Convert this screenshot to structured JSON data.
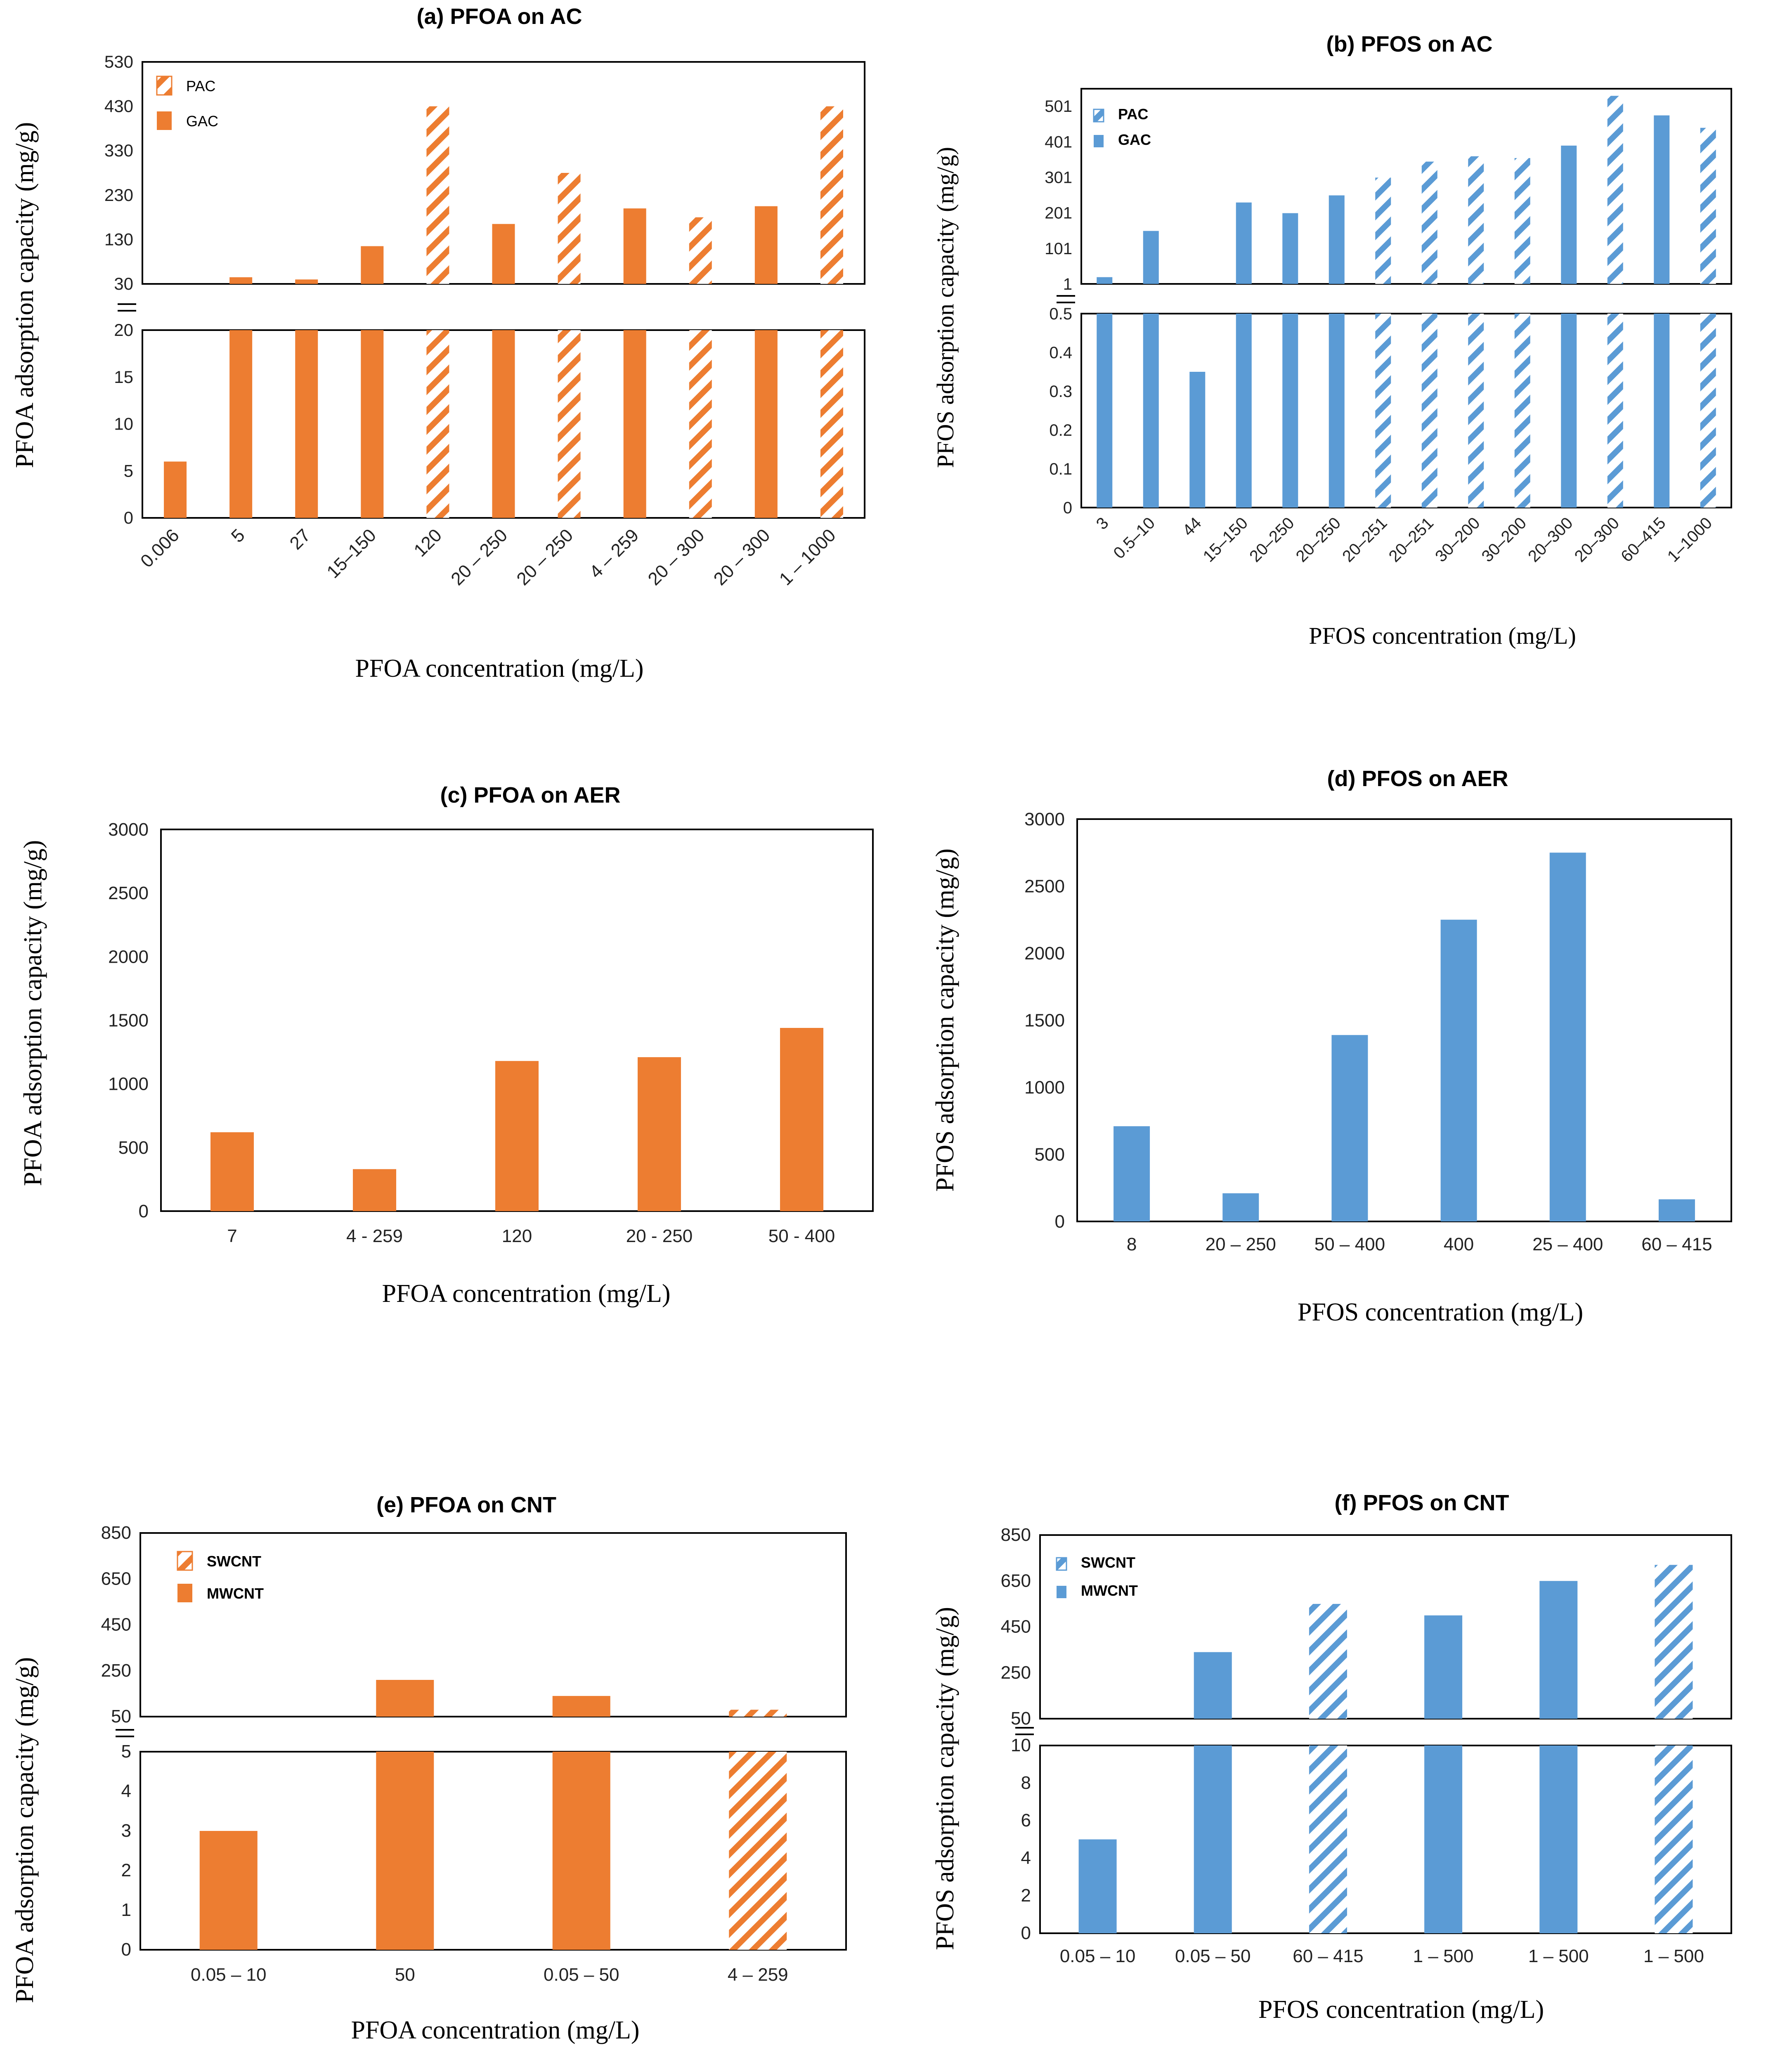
{
  "colors": {
    "orange": "#ED7D31",
    "blue": "#5B9BD5"
  },
  "chart_data": [
    {
      "id": "a",
      "type": "bar",
      "broken_axis": true,
      "title": "(a) PFOA on AC",
      "xlabel": "PFOA concentration (mg/L)",
      "ylabel": "PFOA adsorption capacity (mg/g)",
      "color": "#ED7D31",
      "legend": [
        "PAC",
        "GAC"
      ],
      "categories": [
        "0.006",
        "5",
        "27",
        "15–150",
        "120",
        "20 – 250",
        "20 – 250",
        "4 – 259",
        "20 – 300",
        "20 – 300",
        "1 – 1000"
      ],
      "values": [
        6,
        45,
        40,
        115,
        430,
        165,
        280,
        200,
        180,
        205,
        430
      ],
      "hatched": [
        false,
        false,
        false,
        false,
        true,
        false,
        true,
        false,
        true,
        false,
        true
      ],
      "upper": {
        "ylim": [
          30,
          530
        ],
        "ticks": [
          "530",
          "430",
          "330",
          "230",
          "130",
          "30"
        ],
        "tick_values": [
          530,
          430,
          330,
          230,
          130,
          30
        ]
      },
      "lower": {
        "ylim": [
          0,
          20
        ],
        "ticks": [
          "20",
          "15",
          "10",
          "5",
          "0"
        ],
        "tick_values": [
          20,
          15,
          10,
          5,
          0
        ]
      }
    },
    {
      "id": "b",
      "type": "bar",
      "broken_axis": true,
      "title": "(b) PFOS on AC",
      "xlabel": "PFOS concentration (mg/L)",
      "ylabel": "PFOS adsorption capacity (mg/g)",
      "color": "#5B9BD5",
      "legend": [
        "PAC",
        "GAC"
      ],
      "categories": [
        "3",
        "0.5–10",
        "44",
        "15–150",
        "20–250",
        "20–250",
        "20–251",
        "20–251",
        "30–200",
        "30–200",
        "20–300",
        "20–300",
        "60–415",
        "1–1000"
      ],
      "values": [
        20,
        150,
        0.35,
        230,
        200,
        250,
        300,
        345,
        360,
        355,
        390,
        530,
        475,
        440
      ],
      "hatched": [
        false,
        false,
        false,
        false,
        false,
        false,
        true,
        true,
        true,
        true,
        false,
        true,
        false,
        true
      ],
      "upper": {
        "ylim": [
          1,
          550
        ],
        "ticks": [
          "501",
          "401",
          "301",
          "201",
          "101",
          "1"
        ],
        "tick_values": [
          501,
          401,
          301,
          201,
          101,
          1
        ]
      },
      "lower": {
        "ylim": [
          0,
          0.5
        ],
        "ticks": [
          "0.5",
          "0.4",
          "0.3",
          "0.2",
          "0.1",
          "0"
        ],
        "tick_values": [
          0.5,
          0.4,
          0.3,
          0.2,
          0.1,
          0
        ]
      }
    },
    {
      "id": "c",
      "type": "bar",
      "broken_axis": false,
      "title": "(c) PFOA on AER",
      "xlabel": "PFOA concentration (mg/L)",
      "ylabel": "PFOA adsorption capacity (mg/g)",
      "color": "#ED7D31",
      "categories": [
        "7",
        "4 - 259",
        "120",
        "20 - 250",
        "50 - 400"
      ],
      "values": [
        620,
        330,
        1180,
        1210,
        1440
      ],
      "ylim": [
        0,
        3000
      ],
      "ticks": [
        "3000",
        "2500",
        "2000",
        "1500",
        "1000",
        "500",
        "0"
      ],
      "tick_values": [
        3000,
        2500,
        2000,
        1500,
        1000,
        500,
        0
      ]
    },
    {
      "id": "d",
      "type": "bar",
      "broken_axis": false,
      "title": "(d) PFOS on AER",
      "xlabel": "PFOS concentration (mg/L)",
      "ylabel": "PFOS adsorption capacity (mg/g)",
      "color": "#5B9BD5",
      "categories": [
        "8",
        "20 – 250",
        "50 – 400",
        "400",
        "25 – 400",
        "60 – 415"
      ],
      "values": [
        710,
        210,
        1390,
        2250,
        2750,
        165
      ],
      "ylim": [
        0,
        3000
      ],
      "ticks": [
        "3000",
        "2500",
        "2000",
        "1500",
        "1000",
        "500",
        "0"
      ],
      "tick_values": [
        3000,
        2500,
        2000,
        1500,
        1000,
        500,
        0
      ]
    },
    {
      "id": "e",
      "type": "bar",
      "broken_axis": true,
      "title": "(e) PFOA on CNT",
      "xlabel": "PFOA concentration (mg/L)",
      "ylabel": "PFOA adsorption capacity (mg/g)",
      "color": "#ED7D31",
      "legend": [
        "SWCNT",
        "MWCNT"
      ],
      "categories": [
        "0.05 – 10",
        "50",
        "0.05 – 50",
        "4 – 259"
      ],
      "values": [
        3,
        210,
        140,
        80
      ],
      "hatched": [
        false,
        false,
        false,
        true
      ],
      "upper": {
        "ylim": [
          50,
          850
        ],
        "ticks": [
          "850",
          "650",
          "450",
          "250",
          "50"
        ],
        "tick_values": [
          850,
          650,
          450,
          250,
          50
        ]
      },
      "lower": {
        "ylim": [
          0,
          5
        ],
        "ticks": [
          "5",
          "4",
          "3",
          "2",
          "1",
          "0"
        ],
        "tick_values": [
          5,
          4,
          3,
          2,
          1,
          0
        ]
      }
    },
    {
      "id": "f",
      "type": "bar",
      "broken_axis": true,
      "title": "(f) PFOS on CNT",
      "xlabel": "PFOS concentration (mg/L)",
      "ylabel": "PFOS adsorption capacity (mg/g)",
      "color": "#5B9BD5",
      "legend": [
        "SWCNT",
        "MWCNT"
      ],
      "categories": [
        "0.05 – 10",
        "0.05 – 50",
        "60 – 415",
        "1 – 500",
        "1 – 500",
        "1 – 500"
      ],
      "values": [
        5,
        340,
        550,
        500,
        650,
        720
      ],
      "hatched": [
        false,
        false,
        true,
        false,
        false,
        true
      ],
      "upper": {
        "ylim": [
          50,
          850
        ],
        "ticks": [
          "850",
          "650",
          "450",
          "250",
          "50"
        ],
        "tick_values": [
          850,
          650,
          450,
          250,
          50
        ]
      },
      "lower": {
        "ylim": [
          0,
          10
        ],
        "ticks": [
          "10",
          "8",
          "6",
          "4",
          "2",
          "0"
        ],
        "tick_values": [
          10,
          8,
          6,
          4,
          2,
          0
        ]
      }
    }
  ]
}
